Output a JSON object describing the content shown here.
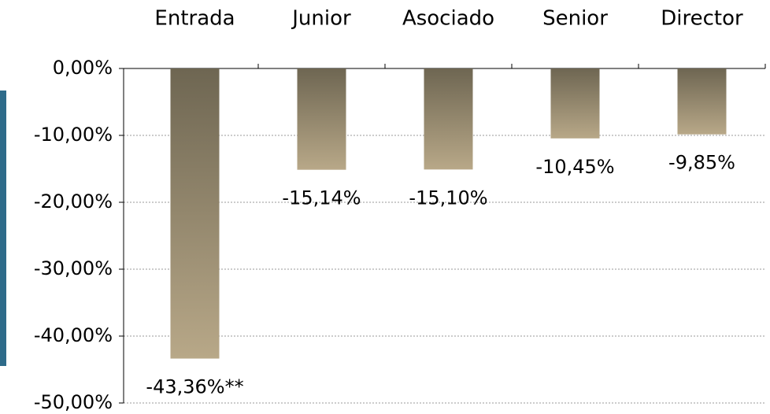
{
  "chart_data": {
    "type": "bar",
    "categories": [
      "Entrada",
      "Junior",
      "Asociado",
      "Senior",
      "Director"
    ],
    "values": [
      -43.36,
      -15.14,
      -15.1,
      -10.45,
      -9.85
    ],
    "value_labels": [
      "-43,36%**",
      "-15,14%",
      "-15,10%",
      "-10,45%",
      "-9,85%"
    ],
    "color": [
      "#6e6652",
      "#b8a888"
    ],
    "ylim": [
      -50,
      0
    ],
    "yticks": [
      {
        "value": 0,
        "label": "0,00%"
      },
      {
        "value": -10,
        "label": "-10,00%"
      },
      {
        "value": -20,
        "label": "-20,00%"
      },
      {
        "value": -30,
        "label": "-30,00%"
      },
      {
        "value": -40,
        "label": "-40,00%"
      },
      {
        "value": -50,
        "label": "-50,00%"
      }
    ],
    "grid": true
  }
}
